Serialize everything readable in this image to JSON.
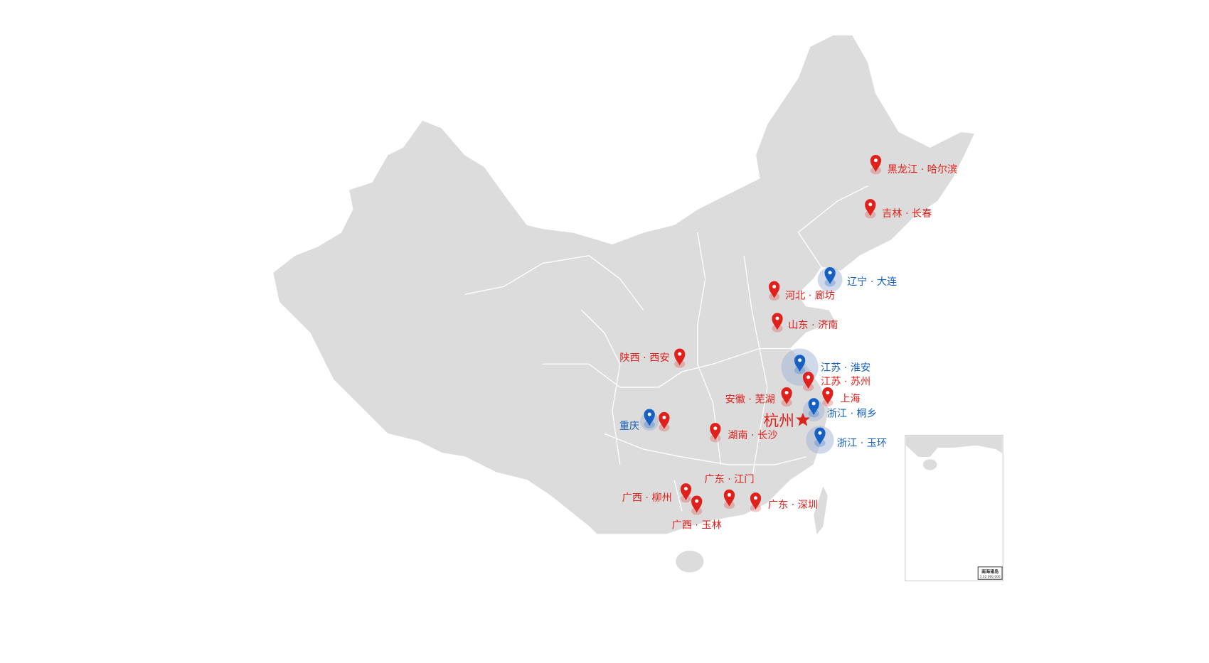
{
  "colors": {
    "land": "#dcdcdc",
    "border": "#ffffff",
    "red": "#e0201b",
    "blue": "#1560c0",
    "star": "#d9261c"
  },
  "hq": {
    "label": "杭州",
    "icon": "star-icon"
  },
  "markers": [
    {
      "label": "黑龙江 · 哈尔滨",
      "color": "red"
    },
    {
      "label": "吉林 · 长春",
      "color": "red"
    },
    {
      "label": "辽宁 · 大连",
      "color": "blue"
    },
    {
      "label": "河北 · 廊坊",
      "color": "red"
    },
    {
      "label": "山东 · 济南",
      "color": "red"
    },
    {
      "label": "陕西 · 西安",
      "color": "red"
    },
    {
      "label": "江苏 · 淮安",
      "color": "blue"
    },
    {
      "label": "江苏 · 苏州",
      "color": "red"
    },
    {
      "label": "安徽 · 芜湖",
      "color": "red"
    },
    {
      "label": "上海",
      "color": "red"
    },
    {
      "label": "浙江 · 桐乡",
      "color": "blue"
    },
    {
      "label": "浙江 · 玉环",
      "color": "blue"
    },
    {
      "label": "重庆",
      "color": "blue"
    },
    {
      "label": "",
      "color": "red"
    },
    {
      "label": "湖南 · 长沙",
      "color": "red"
    },
    {
      "label": "广东 · 江门",
      "color": "red"
    },
    {
      "label": "广西 · 柳州",
      "color": "red"
    },
    {
      "label": "广西 · 玉林",
      "color": "red"
    },
    {
      "label": "广东 · 深圳",
      "color": "red"
    }
  ],
  "inset": {
    "title": "南海诸岛",
    "scale": "1:32 000 000"
  }
}
